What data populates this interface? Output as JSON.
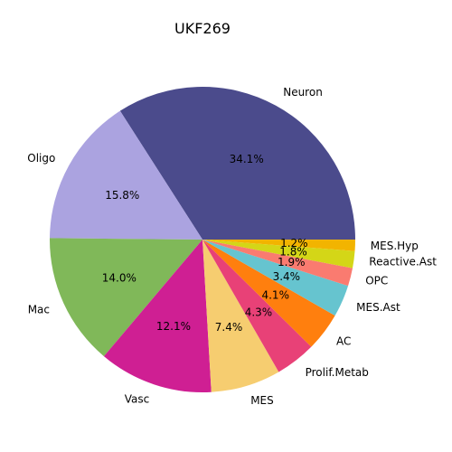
{
  "chart_data": {
    "type": "pie",
    "title": "UKF269",
    "start_angle_deg": 0,
    "direction": "counterclockwise",
    "slices": [
      {
        "label": "Neuron",
        "value": 34.1,
        "pct_label": "34.1%",
        "color": "#4b4b8c"
      },
      {
        "label": "Oligo",
        "value": 15.8,
        "pct_label": "15.8%",
        "color": "#aba3e0"
      },
      {
        "label": "Mac",
        "value": 14.0,
        "pct_label": "14.0%",
        "color": "#80b859"
      },
      {
        "label": "Vasc",
        "value": 12.1,
        "pct_label": "12.1%",
        "color": "#cf1f93"
      },
      {
        "label": "MES",
        "value": 7.4,
        "pct_label": "7.4%",
        "color": "#f6cd70"
      },
      {
        "label": "Prolif.Metab",
        "value": 4.3,
        "pct_label": "4.3%",
        "color": "#e84177"
      },
      {
        "label": "AC",
        "value": 4.1,
        "pct_label": "4.1%",
        "color": "#ff7f0e"
      },
      {
        "label": "MES.Ast",
        "value": 3.4,
        "pct_label": "3.4%",
        "color": "#66c4cf"
      },
      {
        "label": "OPC",
        "value": 1.9,
        "pct_label": "1.9%",
        "color": "#fa7b70"
      },
      {
        "label": "Reactive.Ast",
        "value": 1.8,
        "pct_label": "1.8%",
        "color": "#d4d617"
      },
      {
        "label": "MES.Hyp",
        "value": 1.2,
        "pct_label": "1.2%",
        "color": "#f2b400"
      }
    ]
  }
}
